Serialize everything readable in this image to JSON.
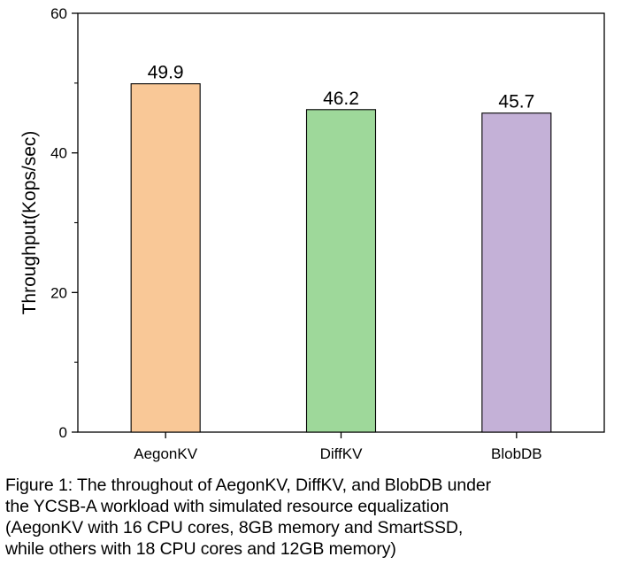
{
  "chart_data": {
    "type": "bar",
    "title": "",
    "xlabel": "",
    "ylabel": "Throughput(Kops/sec)",
    "ylim": [
      0,
      60
    ],
    "yticks": [
      0,
      20,
      40,
      60
    ],
    "categories": [
      "AegonKV",
      "DiffKV",
      "BlobDB"
    ],
    "values": [
      49.9,
      46.2,
      45.7
    ],
    "value_labels": [
      "49.9",
      "46.2",
      "45.7"
    ],
    "colors": [
      "#F9C897",
      "#9ED89A",
      "#C4B1D7"
    ],
    "grid": false,
    "legend": "none"
  },
  "caption": {
    "lines": [
      "Figure 1: The throughout of AegonKV, DiffKV, and BlobDB under",
      "the YCSB-A workload with simulated resource equalization",
      "(AegonKV with 16 CPU cores, 8GB memory and SmartSSD,",
      "while others with 18 CPU cores and 12GB memory)"
    ]
  }
}
